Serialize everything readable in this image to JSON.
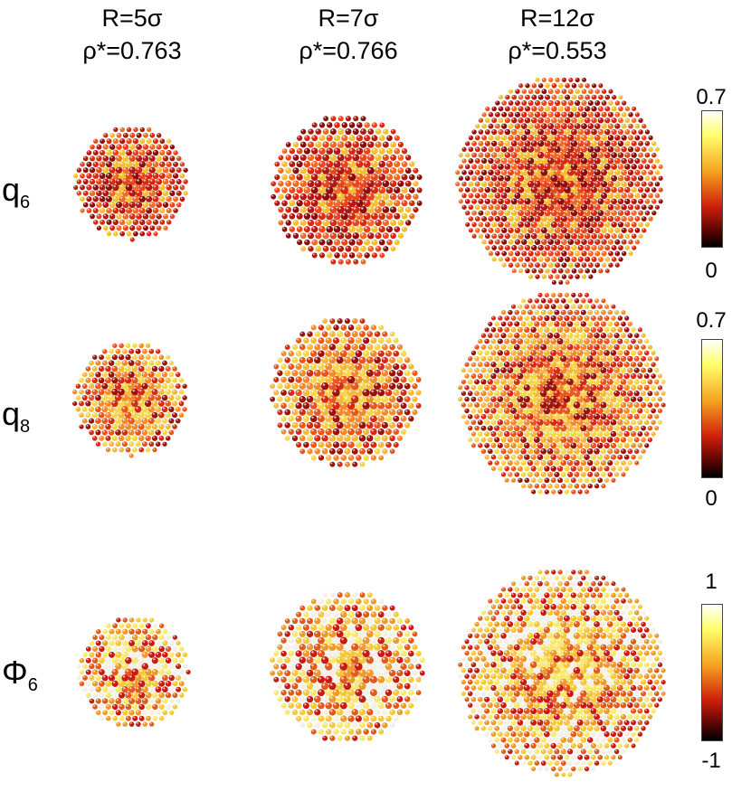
{
  "columns": [
    {
      "radius": "R=5σ",
      "density": "ρ*=0.763"
    },
    {
      "radius": "R=7σ",
      "density": "ρ*=0.766"
    },
    {
      "radius": "R=12σ",
      "density": "ρ*=0.553"
    }
  ],
  "rows": [
    {
      "symbol": "q",
      "subscript": "6"
    },
    {
      "symbol": "q",
      "subscript": "8"
    },
    {
      "symbol": "Φ",
      "subscript": "6"
    }
  ],
  "colorbars": [
    {
      "max": "0.7",
      "min": "0"
    },
    {
      "max": "0.7",
      "min": "0"
    },
    {
      "max": "1",
      "min": "-1"
    }
  ],
  "palettes": {
    "q6": [
      "#d62a10",
      "#e8461a",
      "#b01810",
      "#ef6a22",
      "#8a0d0a",
      "#f0c030"
    ],
    "q8": [
      "#e8561a",
      "#f08a2a",
      "#f5b838",
      "#d42a12",
      "#f5d648",
      "#9a1208"
    ],
    "phi6": [
      "#f2f0e8",
      "#f5c83a",
      "#ee9a2a",
      "#e05a1a",
      "#c81a10",
      "#f8e870"
    ]
  }
}
